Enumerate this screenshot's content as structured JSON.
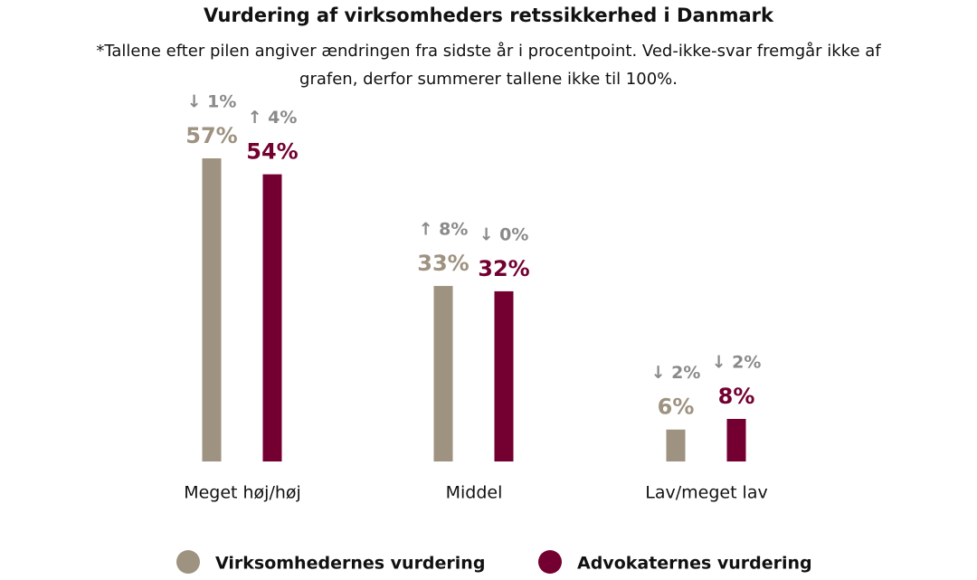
{
  "chart_data": {
    "type": "bar",
    "title": "Vurdering af virksomheders retssikkerhed i Danmark",
    "subtitle": [
      "*Tallene efter pilen angiver ændringen fra sidste år i procentpoint. Ved-ikke-svar fremgår ikke af",
      "grafen, derfor summerer tallene ikke til 100%."
    ],
    "categories": [
      "Meget høj/høj",
      "Middel",
      "Lav/meget lav"
    ],
    "series": [
      {
        "name": "Virksomhedernes vurdering",
        "color": "#9e9280",
        "values": [
          57,
          33,
          6
        ],
        "value_labels": [
          "57%",
          "33%",
          "6%"
        ],
        "change_labels": [
          "↓ 1%",
          "↑ 8%",
          "↓ 2%"
        ]
      },
      {
        "name": "Advokaternes vurdering",
        "color": "#730030",
        "values": [
          54,
          32,
          8
        ],
        "value_labels": [
          "54%",
          "32%",
          "8%"
        ],
        "change_labels": [
          "↑ 4%",
          "↓ 0%",
          "↓ 2%"
        ]
      }
    ]
  }
}
